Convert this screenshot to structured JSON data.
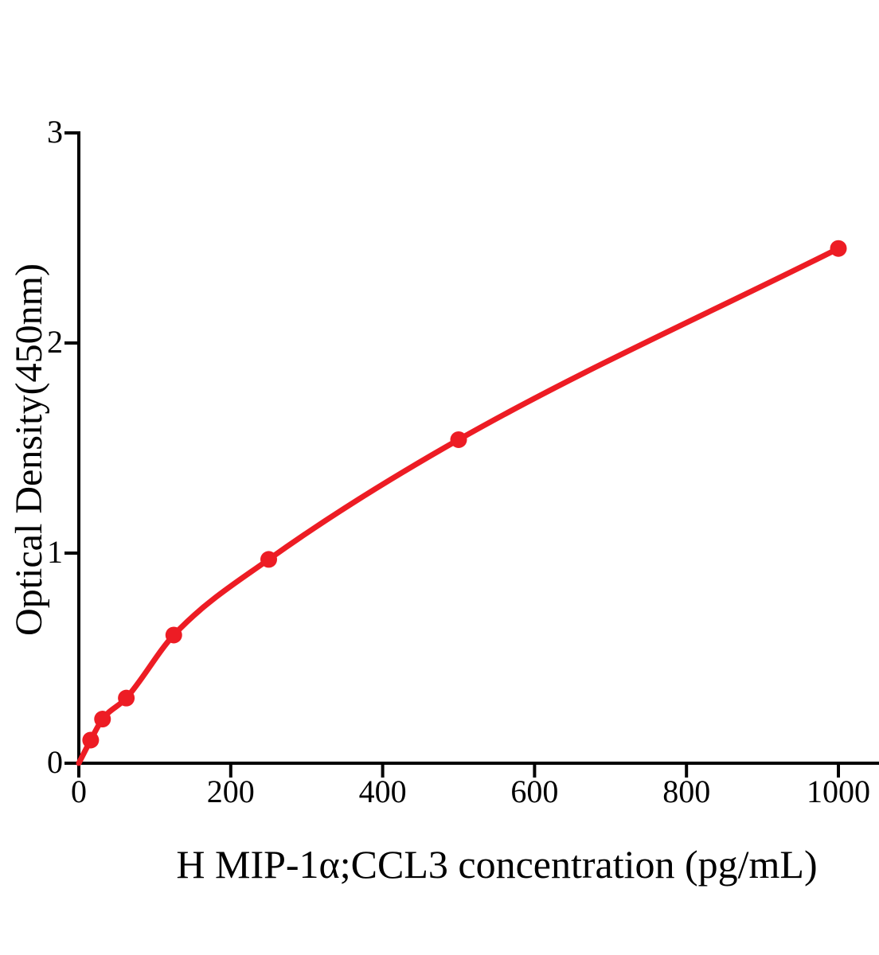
{
  "chart_data": {
    "type": "scatter",
    "title": "",
    "xlabel": "H MIP-1α;CCL3 concentration (pg/mL)",
    "ylabel": "Optical Density(450nm)",
    "x_ticks": [
      0,
      200,
      400,
      600,
      800,
      1000
    ],
    "y_ticks": [
      0,
      1,
      2,
      3
    ],
    "xlim": [
      0,
      1050
    ],
    "ylim": [
      0,
      3
    ],
    "grid": false,
    "legend": "none",
    "axis_color": "#000000",
    "series": [
      {
        "name": "standard curve",
        "color": "#ED1C24",
        "marker": "circle",
        "marker_radius": 10.5,
        "line": "smooth",
        "line_width": 7,
        "curve_origin": {
          "x": 0,
          "y": 0
        },
        "points": [
          {
            "x": 15.6,
            "y": 0.11
          },
          {
            "x": 31.2,
            "y": 0.21
          },
          {
            "x": 62.5,
            "y": 0.31
          },
          {
            "x": 125,
            "y": 0.61
          },
          {
            "x": 250,
            "y": 0.97
          },
          {
            "x": 500,
            "y": 1.54
          },
          {
            "x": 1000,
            "y": 2.45
          }
        ]
      }
    ]
  }
}
